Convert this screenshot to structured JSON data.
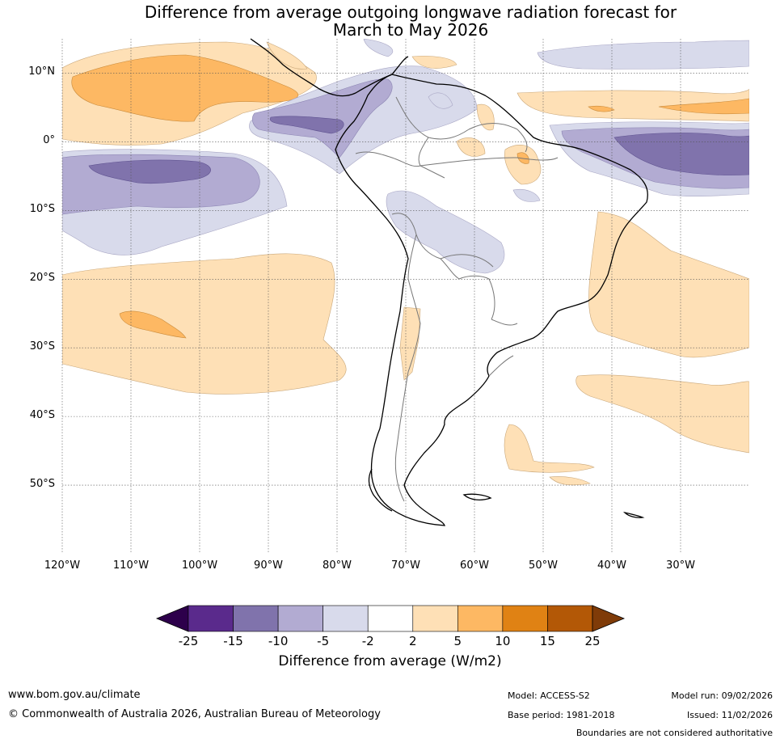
{
  "title": {
    "line1": "Difference from average outgoing longwave radiation forecast for",
    "line2": "March to May 2026"
  },
  "map": {
    "lat_labels": [
      "10°N",
      "0°",
      "10°S",
      "20°S",
      "30°S",
      "40°S",
      "50°S"
    ],
    "lon_labels": [
      "120°W",
      "110°W",
      "100°W",
      "90°W",
      "80°W",
      "70°W",
      "60°W",
      "50°W",
      "40°W",
      "30°W"
    ],
    "lon_range": [
      -120,
      -20
    ],
    "lat_range": [
      -60,
      15
    ],
    "lat_values": [
      10,
      0,
      -10,
      -20,
      -30,
      -40,
      -50
    ],
    "lon_values": [
      -120,
      -110,
      -100,
      -90,
      -80,
      -70,
      -60,
      -50,
      -40,
      -30
    ]
  },
  "colorbar": {
    "ticks": [
      "-25",
      "-15",
      "-10",
      "-5",
      "-2",
      "2",
      "5",
      "10",
      "15",
      "25"
    ],
    "colors": [
      "#2d004b",
      "#5a2a8c",
      "#8073ac",
      "#b2abd2",
      "#d8daeb",
      "#ffffff",
      "#fee0b6",
      "#fdb863",
      "#e08214",
      "#b35806",
      "#7f3b08"
    ],
    "label": "Difference from average (W/m2)"
  },
  "footer": {
    "website": "www.bom.gov.au/climate",
    "copyright": "© Commonwealth of Australia 2026, Australian Bureau of Meteorology",
    "model": "Model: ACCESS-S2",
    "model_run": "Model run: 09/02/2026",
    "base_period": "Base period: 1981-2018",
    "issued": "Issued: 11/02/2026",
    "disclaimer": "Boundaries are not considered authoritative"
  }
}
